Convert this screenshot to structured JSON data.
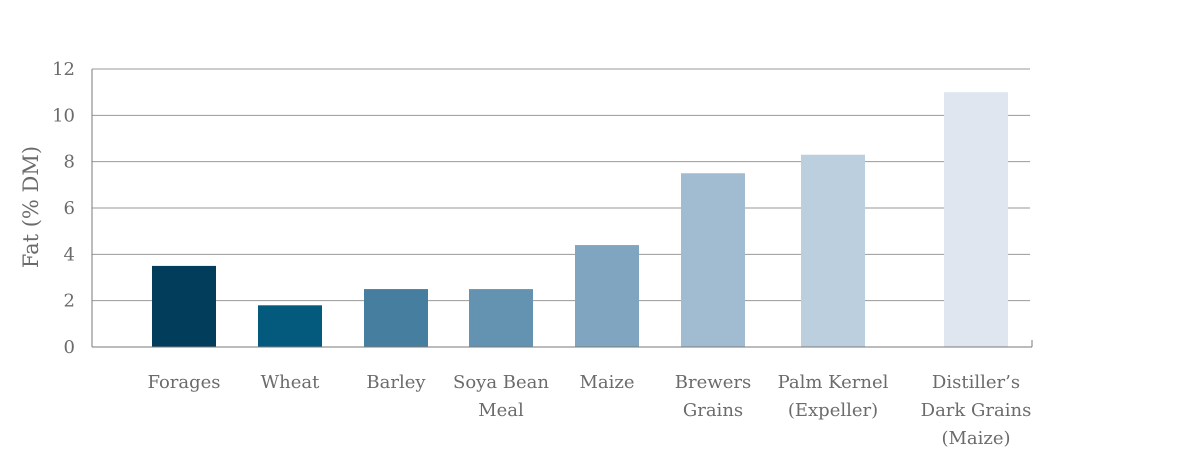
{
  "chart_data": {
    "type": "bar",
    "categories": [
      [
        "Forages"
      ],
      [
        "Wheat"
      ],
      [
        "Barley"
      ],
      [
        "Soya Bean",
        "Meal"
      ],
      [
        "Maize"
      ],
      [
        "Brewers",
        "Grains"
      ],
      [
        "Palm Kernel",
        "(Expeller)"
      ],
      [
        "Distiller’s",
        "Dark Grains",
        "(Maize)"
      ]
    ],
    "values": [
      3.5,
      1.8,
      2.5,
      2.5,
      4.4,
      7.5,
      8.3,
      11
    ],
    "colors": [
      "#023d5c",
      "#045a7d",
      "#457e9e",
      "#6393b0",
      "#80a5c0",
      "#a1bbd0",
      "#bccfdf",
      "#dfe6ef"
    ],
    "title": "",
    "xlabel": "",
    "ylabel": "Fat (% DM)",
    "ylim": [
      0,
      12
    ],
    "yticks": [
      0,
      2,
      4,
      6,
      8,
      10,
      12
    ],
    "grid": true,
    "legend": "none"
  }
}
